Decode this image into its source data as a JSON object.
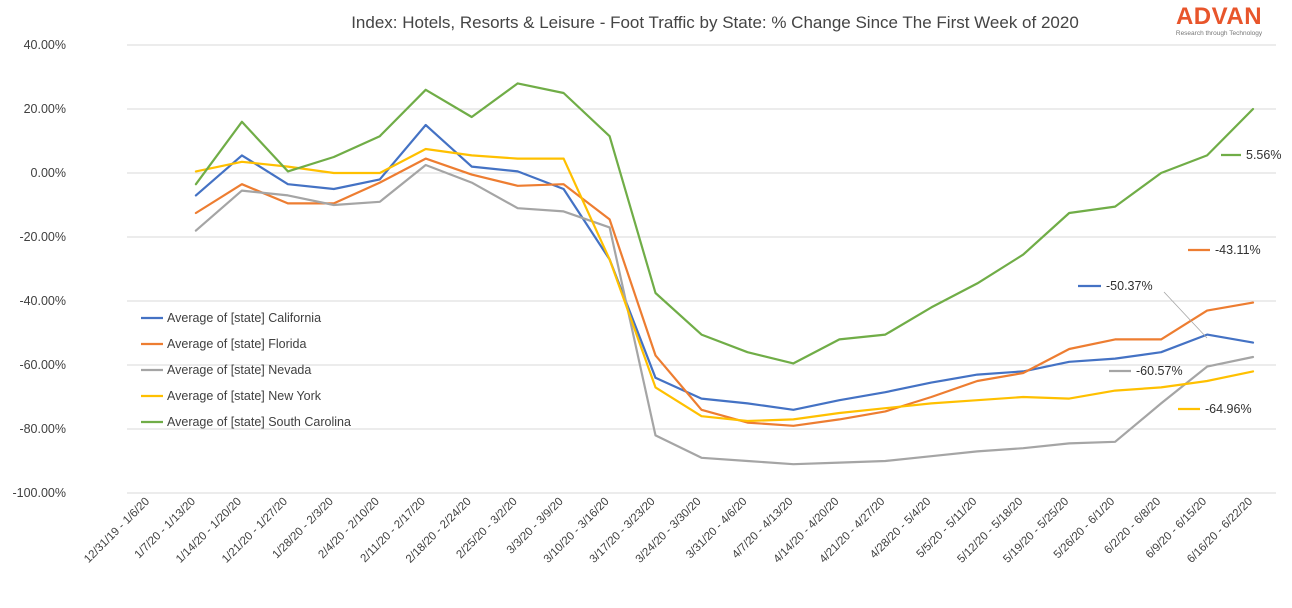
{
  "brand": {
    "name": "ADVAN",
    "tagline": "Research through Technology",
    "color": "#E8552B"
  },
  "chart_data": {
    "type": "line",
    "title": "Index: Hotels, Resorts & Leisure - Foot Traffic by State: % Change Since The First Week of 2020",
    "xlabel": "",
    "ylabel": "",
    "ylim": [
      -100,
      40
    ],
    "yticks": [
      40,
      20,
      0,
      -20,
      -40,
      -60,
      -80,
      -100
    ],
    "ytick_labels": [
      "40.00%",
      "20.00%",
      "0.00%",
      "-20.00%",
      "-40.00%",
      "-60.00%",
      "-80.00%",
      "-100.00%"
    ],
    "grid": true,
    "legend_position": "left-middle",
    "categories": [
      "12/31/19 - 1/6/20",
      "1/7/20 - 1/13/20",
      "1/14/20 - 1/20/20",
      "1/21/20 - 1/27/20",
      "1/28/20 - 2/3/20",
      "2/4/20 - 2/10/20",
      "2/11/20 - 2/17/20",
      "2/18/20 - 2/24/20",
      "2/25/20 - 3/2/20",
      "3/3/20 - 3/9/20",
      "3/10/20 - 3/16/20",
      "3/17/20 - 3/23/20",
      "3/24/20 - 3/30/20",
      "3/31/20 - 4/6/20",
      "4/7/20 - 4/13/20",
      "4/14/20 - 4/20/20",
      "4/21/20 - 4/27/20",
      "4/28/20 - 5/4/20",
      "5/5/20 - 5/11/20",
      "5/12/20 - 5/18/20",
      "5/19/20 - 5/25/20",
      "5/26/20 - 6/1/20",
      "6/2/20 - 6/8/20",
      "6/9/20 - 6/15/20",
      "6/16/20 - 6/22/20"
    ],
    "series": [
      {
        "name": "Average of [state] California",
        "color": "#4472C4",
        "values": [
          null,
          -7,
          5.5,
          -3.5,
          -5,
          -2,
          15,
          2,
          0.5,
          -5,
          -27,
          -64,
          -70.5,
          -72,
          -74,
          -71,
          -68.5,
          -65.5,
          -63,
          -62,
          -59,
          -58,
          -56,
          -50.5,
          -53
        ]
      },
      {
        "name": "Average of [state] Florida",
        "color": "#ED7D31",
        "values": [
          null,
          -12.5,
          -3.5,
          -9.5,
          -9.5,
          -3,
          4.5,
          -0.5,
          -4,
          -3.5,
          -14.5,
          -57,
          -74,
          -78,
          -79,
          -77,
          -74.5,
          -70,
          -65,
          -62.5,
          -55,
          -52,
          -52,
          -43,
          -40.5
        ]
      },
      {
        "name": "Average of [state] Nevada",
        "color": "#A5A5A5",
        "values": [
          null,
          -18,
          -5.5,
          -7,
          -10,
          -9,
          2.5,
          -3,
          -11,
          -12,
          -17,
          -82,
          -89,
          -90,
          -91,
          -90.5,
          -90,
          -88.5,
          -87,
          -86,
          -84.5,
          -84,
          -72,
          -60.5,
          -57.5
        ]
      },
      {
        "name": "Average of [state] New York",
        "color": "#FFC000",
        "values": [
          null,
          0.5,
          3.5,
          2,
          0,
          0,
          7.5,
          5.5,
          4.5,
          4.5,
          -27,
          -67,
          -76,
          -77.5,
          -77,
          -75,
          -73.5,
          -72,
          -71,
          -70,
          -70.5,
          -68,
          -67,
          -65,
          -62
        ]
      },
      {
        "name": "Average of [state] South Carolina",
        "color": "#70AD47",
        "values": [
          null,
          -3.5,
          16,
          0.5,
          5,
          11.5,
          26,
          17.5,
          28,
          25,
          11.5,
          -37.5,
          -50.5,
          -56,
          -59.5,
          -52,
          -50.5,
          -42,
          -34.5,
          -25.5,
          -12.5,
          -10.5,
          0,
          5.5,
          20
        ]
      }
    ],
    "annotations": [
      {
        "label": "5.56%",
        "series": "Average of [state] South Carolina"
      },
      {
        "label": "-43.11%",
        "series": "Average of [state] Florida"
      },
      {
        "label": "-50.37%",
        "series": "Average of [state] California"
      },
      {
        "label": "-60.57%",
        "series": "Average of [state] Nevada"
      },
      {
        "label": "-64.96%",
        "series": "Average of [state] New York"
      }
    ]
  }
}
